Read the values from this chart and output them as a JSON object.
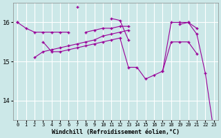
{
  "xlabel": "Windchill (Refroidissement éolien,°C)",
  "x_hours": [
    0,
    1,
    2,
    3,
    4,
    5,
    6,
    7,
    8,
    9,
    10,
    11,
    12,
    13,
    14,
    15,
    16,
    17,
    18,
    19,
    20,
    21,
    22,
    23
  ],
  "line_flat": [
    16.0,
    15.85,
    15.75,
    15.75,
    15.75,
    15.75,
    15.75,
    null,
    15.75,
    15.8,
    15.85,
    15.85,
    15.9,
    15.9,
    null,
    null,
    null,
    null,
    null,
    15.95,
    16.0,
    15.85,
    null,
    null
  ],
  "line_spike": [
    null,
    null,
    null,
    null,
    null,
    null,
    null,
    16.4,
    null,
    null,
    null,
    16.1,
    16.05,
    15.55,
    null,
    null,
    null,
    null,
    null,
    null,
    null,
    null,
    null,
    null
  ],
  "line_rising": [
    null,
    null,
    15.1,
    15.25,
    15.3,
    15.35,
    15.4,
    15.45,
    15.5,
    15.55,
    15.65,
    15.7,
    15.75,
    15.8,
    null,
    null,
    null,
    null,
    null,
    null,
    null,
    null,
    null,
    null
  ],
  "line_diag": [
    16.0,
    null,
    null,
    15.5,
    15.25,
    15.25,
    15.3,
    15.35,
    15.4,
    15.45,
    15.5,
    15.55,
    15.6,
    14.85,
    14.85,
    14.55,
    14.65,
    14.75,
    16.0,
    16.0,
    16.0,
    15.7,
    14.7,
    13.2
  ],
  "line_right": [
    null,
    null,
    null,
    null,
    null,
    null,
    null,
    null,
    null,
    null,
    null,
    null,
    null,
    null,
    null,
    null,
    null,
    14.75,
    15.5,
    15.5,
    15.5,
    15.2,
    null,
    null
  ],
  "ylim": [
    13.5,
    16.5
  ],
  "yticks": [
    14,
    15,
    16
  ],
  "xticks": [
    0,
    1,
    2,
    3,
    4,
    5,
    6,
    7,
    8,
    9,
    10,
    11,
    12,
    13,
    14,
    15,
    16,
    17,
    18,
    19,
    20,
    21,
    22,
    23
  ],
  "line_color": "#990099",
  "bg_color": "#cce8e8",
  "grid_color": "#ffffff",
  "tick_color": "#000000"
}
